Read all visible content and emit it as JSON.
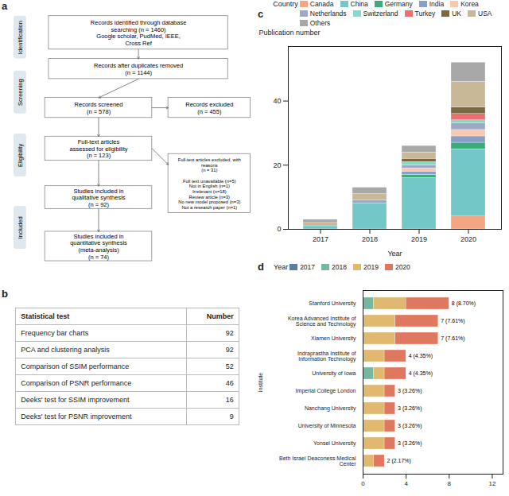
{
  "chart_data": [
    {
      "type": "flowchart",
      "title": "a",
      "categories": [
        "Identification",
        "Screening",
        "Eligibility",
        "Included"
      ],
      "annotations": [
        "Records identified through database\nsearching (n = 1460)\nGoogle scholar, PudMed, IEEE,\nCross Ref",
        "Records after duplicates removed\n(n = 1144)",
        "Records screened\n(n = 578)",
        "Records excluded\n(n = 455)",
        "Full-text articles\nassessed for eligibility\n(n = 123)",
        "Full-text articles excluded, with\nreasons\n(n = 31)\n\nFull text unavailable (n=5)\nNot in English (n=1)\nIrrelevant (n=18)\nReview article (n=3)\nNo new model proposed (n=3)\nNot a research paper (n=1)",
        "Studies included in\nqualitative synthesis\n(n = 92)",
        "Studies included in\nquantitative synthesis\n(meta-analysis)\n(n = 74)"
      ]
    },
    {
      "type": "table",
      "title": "b",
      "columns": [
        "Statistical test",
        "Number"
      ],
      "categories": [
        "Frequency bar charts",
        "PCA and clustering analysis",
        "Comparison of SSIM performance",
        "Comparison of PSNR performance",
        "Deeks' test for SSIM improvement",
        "Deeks' test for PSNR improvement"
      ],
      "values": [
        92,
        92,
        52,
        46,
        16,
        9
      ]
    },
    {
      "type": "bar",
      "title": "c",
      "stacked": true,
      "legend": "top",
      "legend_title": "Country",
      "xlabel": "Year",
      "ylabel": "Publication number",
      "categories": [
        "2017",
        "2018",
        "2019",
        "2020"
      ],
      "ylim": [
        0,
        57
      ],
      "yticks": [
        0,
        20,
        40
      ],
      "series": [
        {
          "name": "Canada",
          "color": "#F4A582",
          "values": [
            0,
            0,
            0,
            4
          ]
        },
        {
          "name": "China",
          "color": "#74C7C7",
          "values": [
            1,
            8,
            16,
            21
          ]
        },
        {
          "name": "Germany",
          "color": "#3DAA7A",
          "values": [
            0,
            0,
            1,
            2
          ]
        },
        {
          "name": "India",
          "color": "#8A9FC7",
          "values": [
            0,
            0,
            1,
            2
          ]
        },
        {
          "name": "Korea",
          "color": "#F8C8B0",
          "values": [
            0,
            0,
            1,
            2
          ]
        },
        {
          "name": "Netherlands",
          "color": "#A0A8C8",
          "values": [
            0,
            1,
            1,
            2
          ]
        },
        {
          "name": "Switzerland",
          "color": "#88D8C8",
          "values": [
            0,
            0,
            1,
            1
          ]
        },
        {
          "name": "Turkey",
          "color": "#E87070",
          "values": [
            0,
            0,
            0,
            2
          ]
        },
        {
          "name": "UK",
          "color": "#7B6840",
          "values": [
            0,
            0,
            1,
            2
          ]
        },
        {
          "name": "USA",
          "color": "#C8B898",
          "values": [
            1,
            2,
            2,
            8
          ]
        },
        {
          "name": "Others",
          "color": "#A8A8A8",
          "values": [
            1,
            2,
            2,
            6
          ]
        }
      ]
    },
    {
      "type": "bar",
      "title": "d",
      "orientation": "horizontal",
      "stacked": true,
      "legend": "top",
      "legend_title": "Year",
      "ylabel": "Institute",
      "categories": [
        "Stanford University",
        "Korea Advanced Institute of Science and Technology",
        "Xiamen University",
        "Indraprastha Institute of Information Technology",
        "University of Iowa",
        "Imperial College London",
        "Nanchang University",
        "University of Minnesota",
        "Yonsei University",
        "Beth Israel Deaconess Medical Center"
      ],
      "xlim": [
        0,
        13
      ],
      "xticks": [
        0,
        4,
        8,
        12
      ],
      "series": [
        {
          "name": "2017",
          "color": "#5A7FA0",
          "values": [
            0,
            0,
            0,
            0,
            0,
            0,
            0,
            0,
            0,
            0
          ]
        },
        {
          "name": "2018",
          "color": "#74B8A0",
          "values": [
            1,
            0,
            0,
            0,
            1,
            0,
            0,
            0,
            0,
            0
          ]
        },
        {
          "name": "2019",
          "color": "#E0B870",
          "values": [
            3,
            3,
            3,
            2,
            1,
            2,
            2,
            2,
            2,
            1
          ]
        },
        {
          "name": "2020",
          "color": "#E07860",
          "values": [
            4,
            4,
            4,
            2,
            2,
            1,
            1,
            1,
            1,
            1
          ]
        }
      ],
      "data_labels": true,
      "totals": [
        8,
        7,
        7,
        4,
        4,
        3,
        3,
        3,
        3,
        2
      ],
      "value_labels": [
        "8 (8.70%)",
        "7 (7.61%)",
        "7 (7.61%)",
        "4 (4.35%)",
        "4 (4.35%)",
        "3 (3.26%)",
        "3 (3.26%)",
        "3 (3.26%)",
        "3 (3.26%)",
        "2 (2.17%)"
      ]
    }
  ]
}
